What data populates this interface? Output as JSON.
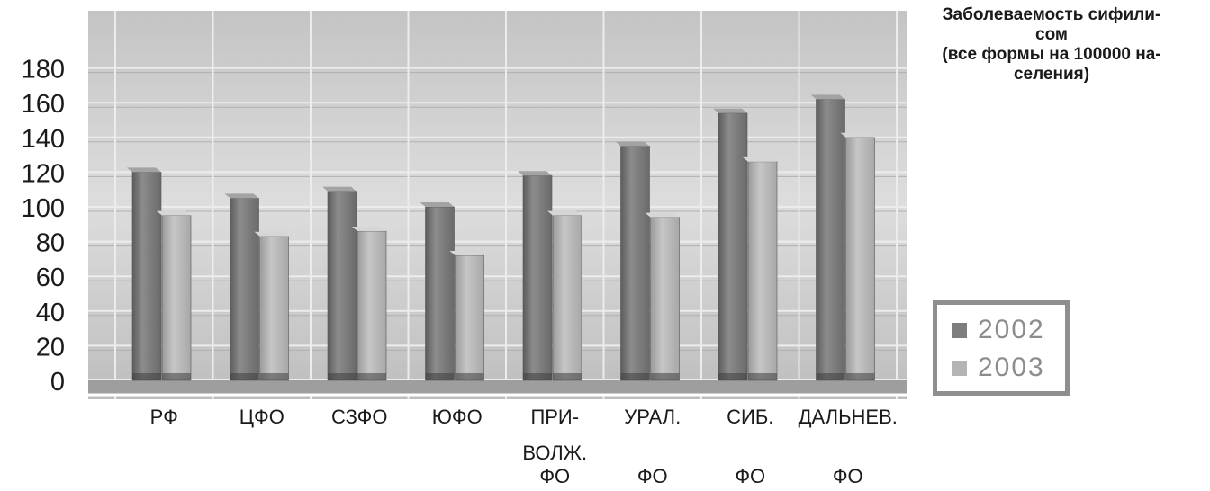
{
  "chart_data": {
    "type": "bar",
    "title_lines": [
      "Заболеваемость сифили-",
      "сом",
      "(все формы на 100000 на-",
      "селения)"
    ],
    "categories": [
      [
        "РФ"
      ],
      [
        "ЦФО"
      ],
      [
        "СЗФО"
      ],
      [
        "ЮФО"
      ],
      [
        "ПРИ-",
        "ВОЛЖ.",
        "ФО"
      ],
      [
        "УРАЛ.",
        "",
        "ФО"
      ],
      [
        "СИБ.",
        "",
        "ФО"
      ],
      [
        "ДАЛЬНЕВ.",
        "",
        "ФО"
      ]
    ],
    "series": [
      {
        "name": "2002",
        "values": [
          120,
          105,
          109,
          100,
          118,
          135,
          154,
          162
        ]
      },
      {
        "name": "2003",
        "values": [
          95,
          83,
          86,
          72,
          95,
          94,
          126,
          140
        ]
      }
    ],
    "y_ticks": [
      "0",
      "20",
      "40",
      "60",
      "80",
      "100",
      "120",
      "140",
      "160",
      "180"
    ],
    "ylim": [
      0,
      180
    ],
    "grid": true,
    "legend_position": "right",
    "colors": {
      "series_2002": "#7d7d7d",
      "series_2003": "#b4b4b4",
      "wall": "#c9c9c9",
      "axis_text": "#1a1a1a"
    }
  }
}
